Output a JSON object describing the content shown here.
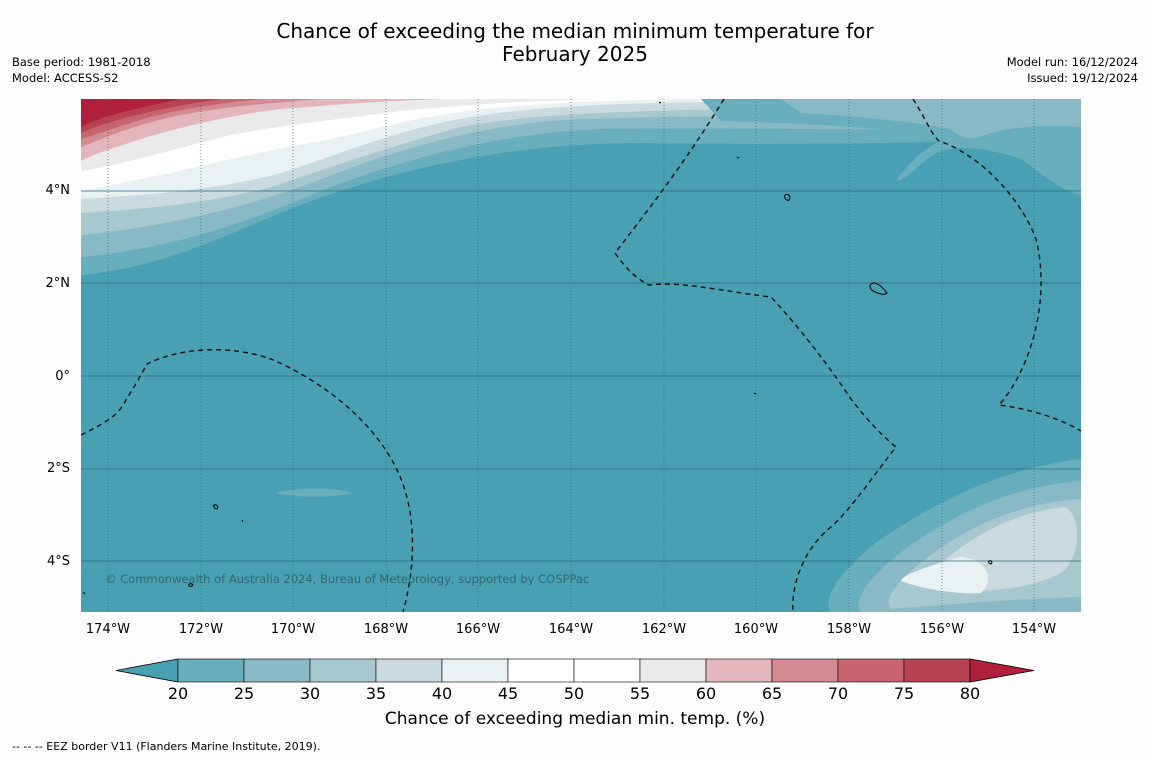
{
  "title_line1": "Chance of exceeding the median minimum temperature for",
  "title_line2": "February 2025",
  "meta_left": [
    "Base period: 1981-2018",
    "Model: ACCESS-S2"
  ],
  "meta_right": [
    "Model run: 16/12/2024",
    "Issued: 19/12/2024"
  ],
  "copyright": "© Commonwealth of Australia 2024, Bureau of Meteorology, supported by COSPPac",
  "lat_labels": [
    "4°N",
    "2°N",
    "0°",
    "2°S",
    "4°S"
  ],
  "lon_labels": [
    "174°W",
    "172°W",
    "170°W",
    "168°W",
    "166°W",
    "164°W",
    "162°W",
    "160°W",
    "158°W",
    "156°W",
    "154°W"
  ],
  "colorbar": {
    "ticks": [
      "20",
      "25",
      "30",
      "35",
      "40",
      "45",
      "50",
      "55",
      "60",
      "65",
      "70",
      "75",
      "80"
    ],
    "colors": [
      "#48a0b2",
      "#69aebd",
      "#8ab9c6",
      "#a8c8cf",
      "#cbdade",
      "#eaf1f2",
      "#ffffff",
      "#ffffff",
      "#eaeaea",
      "#e2b6bc",
      "#d48a93",
      "#c7646f",
      "#b94252",
      "#b0203d"
    ],
    "label": "Chance of exceeding median min. temp. (%)"
  },
  "footnote": "--  --  -- EEZ border V11 (Flanders Marine Institute, 2019)."
}
